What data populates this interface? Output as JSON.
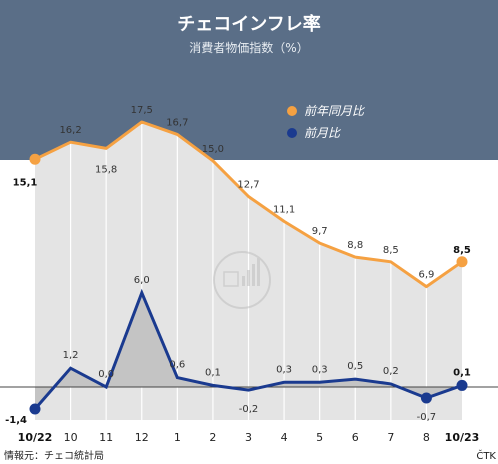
{
  "chart_data": {
    "type": "line",
    "title": "チェコインフレ率",
    "subtitle": "消費者物価指数（%）",
    "categories": [
      "10/22",
      "10",
      "11",
      "12",
      "1",
      "2",
      "3",
      "4",
      "5",
      "6",
      "7",
      "8",
      "10/23"
    ],
    "series": [
      {
        "name": "前年同月比",
        "color": "#f5a142",
        "values": [
          15.1,
          16.2,
          15.8,
          17.5,
          16.7,
          15.0,
          12.7,
          11.1,
          9.7,
          8.8,
          8.5,
          6.9,
          8.5
        ],
        "labels": [
          "15,1",
          "16,2",
          "15,8",
          "17,5",
          "16,7",
          "15,0",
          "12,7",
          "11,1",
          "9,7",
          "8,8",
          "8,5",
          "6,9",
          "8,5"
        ]
      },
      {
        "name": "前月比",
        "color": "#1a3a8f",
        "values": [
          -1.4,
          1.2,
          0.0,
          6.0,
          0.6,
          0.1,
          -0.2,
          0.3,
          0.3,
          0.5,
          0.2,
          -0.7,
          0.1
        ],
        "labels": [
          "-1,4",
          "1,2",
          "0,0",
          "6,0",
          "0,6",
          "0,1",
          "-0,2",
          "0,3",
          "0,3",
          "0,5",
          "0,2",
          "-0,7",
          "0,1"
        ]
      }
    ],
    "legend": "top-right",
    "grid": false
  },
  "colors": {
    "header_bg": "#5a6e87",
    "area_fill": "#e4e4e4",
    "mom_fill": "#c4c4c4"
  },
  "source": "情報元：チェコ統計局",
  "credit": "ČTK"
}
